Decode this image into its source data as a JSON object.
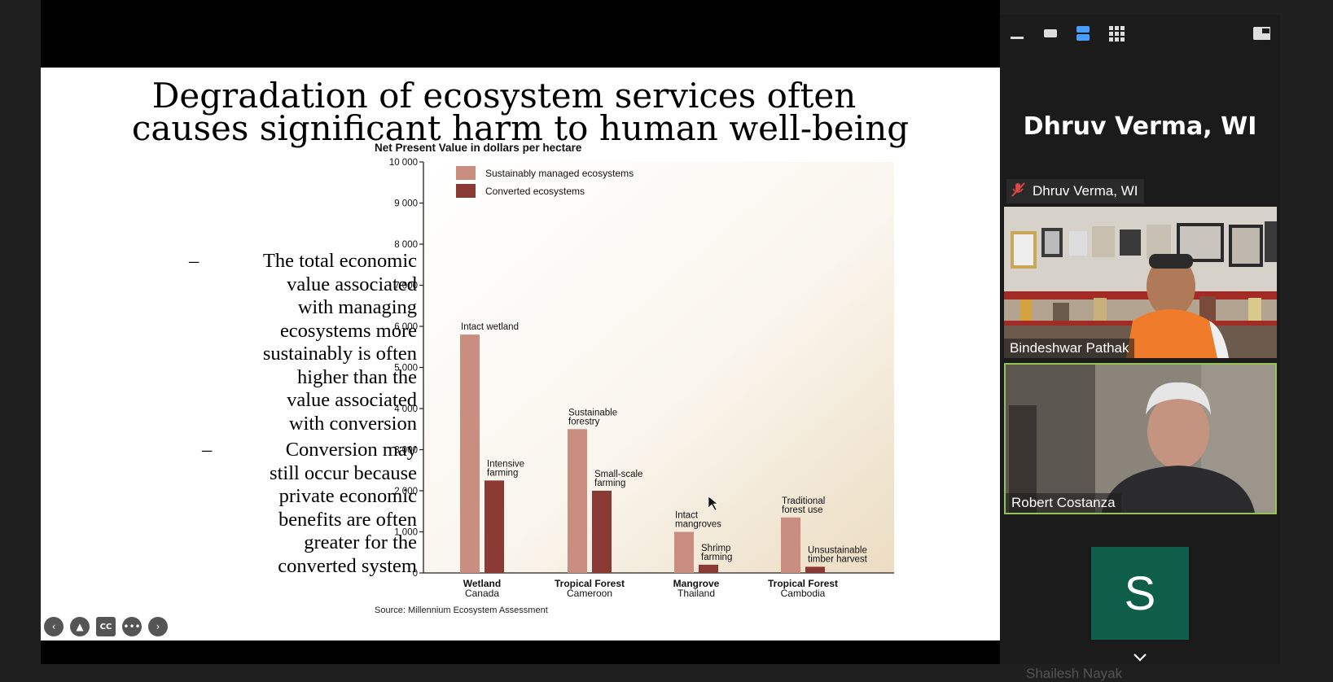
{
  "slide": {
    "title_line1": "Degradation of ecosystem services often",
    "title_line2": "causes significant harm to human well-being",
    "bullets": [
      {
        "dash": "–",
        "lines": [
          "The total economic",
          "value associated",
          "with managing",
          "ecosystems more",
          "sustainably is often",
          "higher than the",
          "value associated",
          "with conversion"
        ]
      },
      {
        "dash": "–",
        "lines": [
          "Conversion may",
          "still occur because",
          "private economic",
          "benefits are often",
          "greater for the",
          "converted system"
        ]
      }
    ]
  },
  "chart_data": {
    "type": "bar",
    "title": "Net Present Value in dollars per hectare",
    "source": "Source: Millennium Ecosystem Assessment",
    "ylim": [
      0,
      10000
    ],
    "yticks": [
      "0",
      "1 000",
      "2 000",
      "3 000",
      "4 000",
      "5 000",
      "6 000",
      "7 000",
      "8 000",
      "9 000",
      "10 000"
    ],
    "legend_position": "top-left",
    "categories": [
      {
        "name": "Wetland",
        "place": "Canada"
      },
      {
        "name": "Tropical Forest",
        "place": "Cameroon"
      },
      {
        "name": "Mangrove",
        "place": "Thailand"
      },
      {
        "name": "Tropical Forest",
        "place": "Cambodia"
      }
    ],
    "series": [
      {
        "name": "Sustainably managed ecosystems",
        "color": "#c98e7f",
        "values": [
          5800,
          3500,
          1000,
          1350
        ],
        "labels": [
          [
            "Intact wetland"
          ],
          [
            "Sustainable",
            "forestry"
          ],
          [
            "Intact",
            "mangroves"
          ],
          [
            "Traditional",
            "forest use"
          ]
        ]
      },
      {
        "name": "Converted ecosystems",
        "color": "#8a3a33",
        "values": [
          2250,
          2000,
          200,
          150
        ],
        "labels": [
          [
            "Intensive",
            "farming"
          ],
          [
            "Small-scale",
            "farming"
          ],
          [
            "Shrimp",
            "farming"
          ],
          [
            "Unsustainable",
            "timber harvest"
          ]
        ]
      }
    ]
  },
  "controls": [
    {
      "name": "previous-slide",
      "glyph": "‹"
    },
    {
      "name": "pointer-tool",
      "glyph": "▲"
    },
    {
      "name": "captions",
      "glyph": "CC"
    },
    {
      "name": "more-options",
      "glyph": "•••"
    },
    {
      "name": "next-slide",
      "glyph": "›"
    }
  ],
  "panel": {
    "speaker": "Dhruv Verma, WI",
    "muted_label": "Dhruv Verma, WI",
    "participants": [
      "Bindeshwar Pathak",
      "Robert Costanza"
    ],
    "avatar_letter": "S",
    "partial_name": "Shailesh Nayak",
    "accent": "#92c353",
    "active_view": "#4a9eff"
  }
}
